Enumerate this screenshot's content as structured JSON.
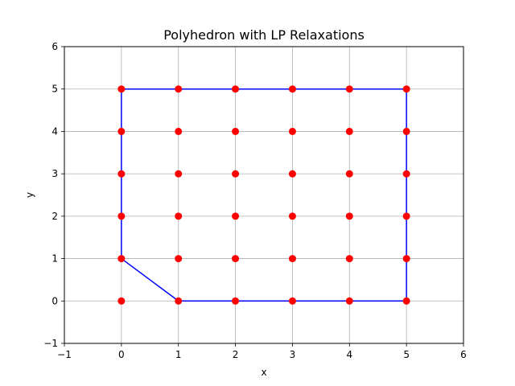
{
  "chart_data": {
    "type": "scatter",
    "title": "Polyhedron with LP Relaxations",
    "xlabel": "x",
    "ylabel": "y",
    "xlim": [
      -1,
      6
    ],
    "ylim": [
      -1,
      6
    ],
    "xticks": [
      -1,
      0,
      1,
      2,
      3,
      4,
      5,
      6
    ],
    "yticks": [
      -1,
      0,
      1,
      2,
      3,
      4,
      5,
      6
    ],
    "grid": true,
    "colors": {
      "polygon": "#0000ff",
      "points": "#ff0000",
      "grid": "#b0b0b0"
    },
    "polygon": [
      [
        0,
        1
      ],
      [
        1,
        0
      ],
      [
        5,
        0
      ],
      [
        5,
        5
      ],
      [
        0,
        5
      ],
      [
        0,
        1
      ]
    ],
    "points": [
      [
        0,
        0
      ],
      [
        0,
        1
      ],
      [
        0,
        2
      ],
      [
        0,
        3
      ],
      [
        0,
        4
      ],
      [
        0,
        5
      ],
      [
        1,
        0
      ],
      [
        1,
        1
      ],
      [
        1,
        2
      ],
      [
        1,
        3
      ],
      [
        1,
        4
      ],
      [
        1,
        5
      ],
      [
        2,
        0
      ],
      [
        2,
        1
      ],
      [
        2,
        2
      ],
      [
        2,
        3
      ],
      [
        2,
        4
      ],
      [
        2,
        5
      ],
      [
        3,
        0
      ],
      [
        3,
        1
      ],
      [
        3,
        2
      ],
      [
        3,
        3
      ],
      [
        3,
        4
      ],
      [
        3,
        5
      ],
      [
        4,
        0
      ],
      [
        4,
        1
      ],
      [
        4,
        2
      ],
      [
        4,
        3
      ],
      [
        4,
        4
      ],
      [
        4,
        5
      ],
      [
        5,
        0
      ],
      [
        5,
        1
      ],
      [
        5,
        2
      ],
      [
        5,
        3
      ],
      [
        5,
        4
      ],
      [
        5,
        5
      ]
    ]
  }
}
